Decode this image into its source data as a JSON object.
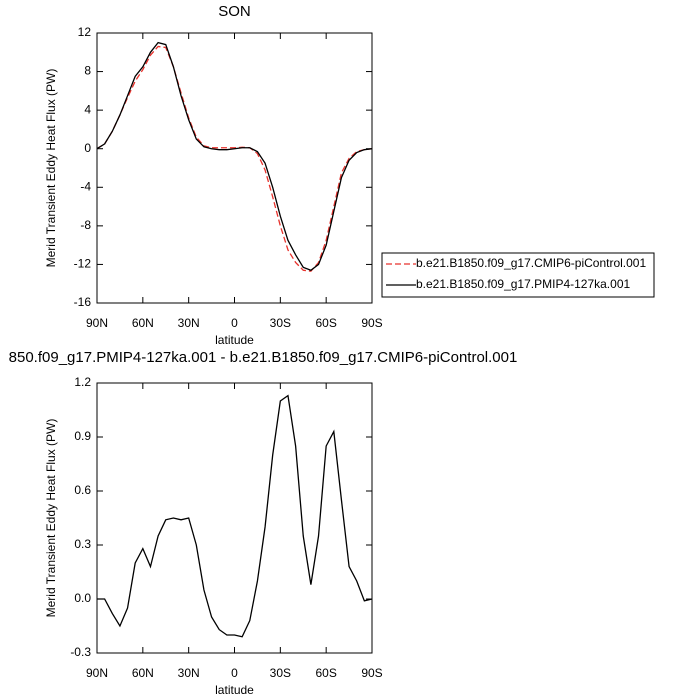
{
  "chart_data": [
    {
      "type": "line",
      "title": "SON",
      "xlabel": "latitude",
      "ylabel": "Merid Transient Eddy Heat Flux (PW)",
      "x": [
        90,
        85,
        80,
        75,
        70,
        65,
        60,
        55,
        50,
        45,
        40,
        35,
        30,
        25,
        20,
        15,
        10,
        5,
        0,
        -5,
        -10,
        -15,
        -20,
        -25,
        -30,
        -35,
        -40,
        -45,
        -50,
        -55,
        -60,
        -65,
        -70,
        -75,
        -80,
        -85,
        -90
      ],
      "series": [
        {
          "name": "b.e21.B1850.f09_g17.CMIP6-piControl.001",
          "color": "#e8322c",
          "line_style": "dashed",
          "values": [
            0,
            0.5,
            1.8,
            3.5,
            5.3,
            7,
            8.2,
            9.7,
            10.6,
            10.5,
            8.5,
            5.8,
            3.2,
            1.2,
            0.3,
            0.1,
            0.1,
            0.1,
            0.1,
            0.15,
            0.1,
            -0.5,
            -2.2,
            -5,
            -8,
            -10.5,
            -11.8,
            -12.6,
            -12.7,
            -11.8,
            -9.5,
            -6,
            -2.5,
            -1,
            -0.3,
            -0.1,
            0
          ]
        },
        {
          "name": "b.e21.B1850.f09_g17.PMIP4-127ka.001",
          "color": "#000000",
          "line_style": "solid",
          "values": [
            0,
            0.5,
            1.8,
            3.5,
            5.5,
            7.5,
            8.5,
            10,
            11,
            10.8,
            8.5,
            5.5,
            3,
            1,
            0.2,
            0,
            -0.1,
            -0.1,
            0,
            0.1,
            0.1,
            -0.3,
            -1.5,
            -4,
            -7,
            -9.5,
            -11,
            -12.3,
            -12.6,
            -12,
            -10,
            -6.5,
            -3,
            -1.2,
            -0.4,
            -0.1,
            0
          ]
        }
      ],
      "xlim": [
        90,
        -90
      ],
      "xticks": [
        {
          "value": 90,
          "label": "90N"
        },
        {
          "value": 60,
          "label": "60N"
        },
        {
          "value": 30,
          "label": "30N"
        },
        0,
        {
          "value": -30,
          "label": "30S"
        },
        {
          "value": -60,
          "label": "60S"
        },
        {
          "value": -90,
          "label": "90S"
        }
      ],
      "ylim": [
        -16,
        12
      ],
      "yticks": [
        -16,
        -12,
        -8,
        -4,
        0,
        4,
        8,
        12
      ],
      "legend": "right"
    },
    {
      "type": "line",
      "title": "850.f09_g17.PMIP4-127ka.001 - b.e21.B1850.f09_g17.CMIP6-piControl.001",
      "xlabel": "latitude",
      "ylabel": "Merid Transient Eddy Heat Flux (PW)",
      "x": [
        90,
        85,
        80,
        75,
        70,
        65,
        60,
        55,
        50,
        45,
        40,
        35,
        30,
        25,
        20,
        15,
        10,
        5,
        0,
        -5,
        -10,
        -15,
        -20,
        -25,
        -30,
        -35,
        -40,
        -45,
        -50,
        -55,
        -60,
        -65,
        -70,
        -75,
        -80,
        -85,
        -90
      ],
      "series": [
        {
          "color": "#000000",
          "line_style": "solid",
          "values": [
            0,
            0,
            -0.08,
            -0.15,
            -0.05,
            0.2,
            0.28,
            0.18,
            0.35,
            0.44,
            0.45,
            0.44,
            0.45,
            0.3,
            0.05,
            -0.1,
            -0.17,
            -0.2,
            -0.2,
            -0.21,
            -0.12,
            0.1,
            0.4,
            0.8,
            1.1,
            1.13,
            0.85,
            0.35,
            0.08,
            0.35,
            0.85,
            0.93,
            0.55,
            0.18,
            0.1,
            -0.01,
            0
          ]
        }
      ],
      "xlim": [
        90,
        -90
      ],
      "xticks": [
        {
          "value": 90,
          "label": "90N"
        },
        {
          "value": 60,
          "label": "60N"
        },
        {
          "value": 30,
          "label": "30N"
        },
        0,
        {
          "value": -30,
          "label": "30S"
        },
        {
          "value": -60,
          "label": "60S"
        },
        {
          "value": -90,
          "label": "90S"
        }
      ],
      "ylim": [
        -0.3,
        1.2
      ],
      "yticks": [
        -0.3,
        {
          "value": 0,
          "label": "0.0"
        },
        0.3,
        0.6,
        0.9,
        1.2
      ]
    }
  ]
}
